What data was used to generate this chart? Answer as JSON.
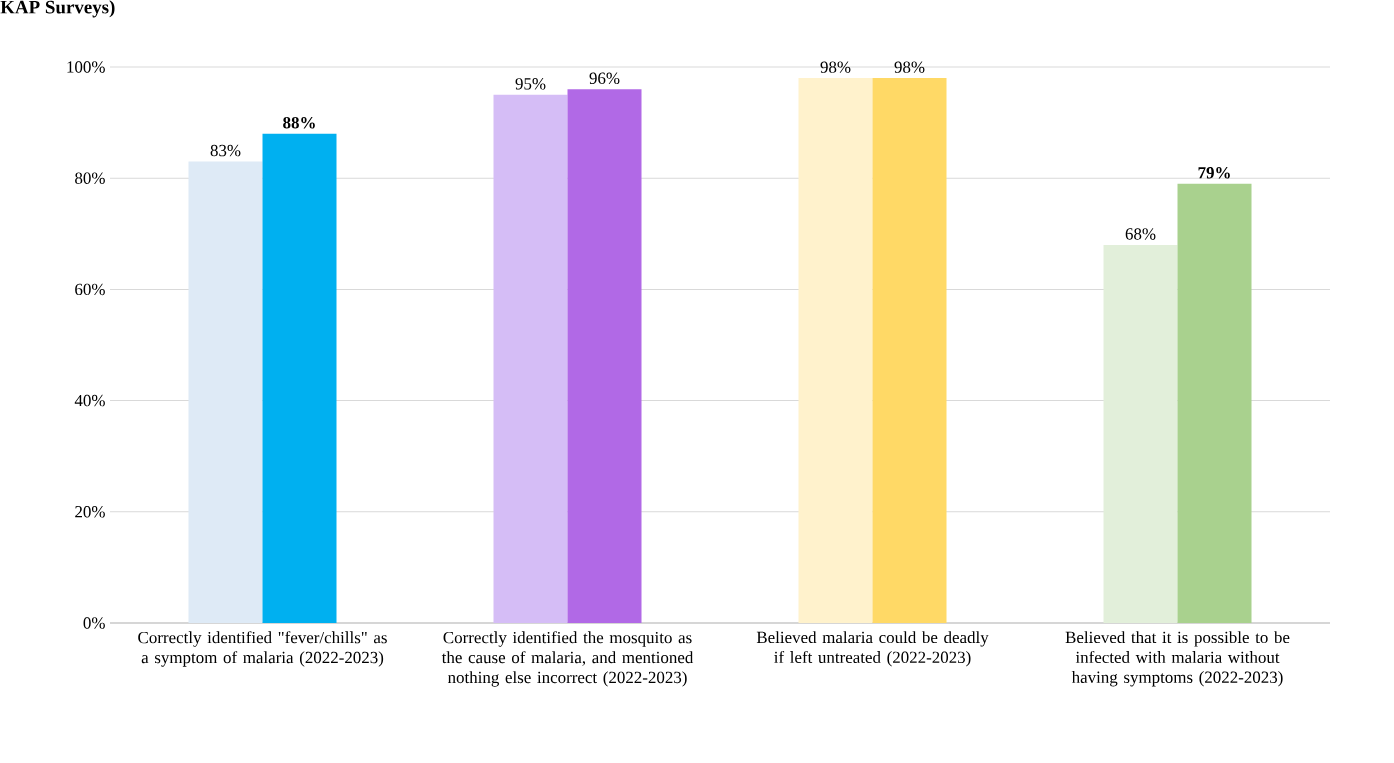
{
  "chart_data": {
    "type": "bar",
    "title": "KAP Surveys)",
    "categories": [
      "Correctly identified \"fever/chills\" as a symptom of malaria (2022-2023)",
      "Correctly identified the mosquito as the cause of malaria, and mentioned nothing else incorrect (2022-2023)",
      "Believed malaria could be deadly if left untreated (2022-2023)",
      "Believed that it is possible to be infected with malaria without having symptoms (2022-2023)"
    ],
    "series": [
      {
        "colors": [
          "#deeaf6",
          "#d5bdf6",
          "#fff2cc",
          "#e2efda"
        ],
        "values": [
          83,
          95,
          98,
          68
        ],
        "value_labels": [
          "83%",
          "95%",
          "98%",
          "68%"
        ]
      },
      {
        "colors": [
          "#00b0f0",
          "#b169e6",
          "#ffd966",
          "#a9d18e"
        ],
        "values": [
          88,
          96,
          98,
          79
        ],
        "value_labels": [
          "**88%**",
          "96%",
          "98%",
          "**79%**"
        ]
      }
    ],
    "ylim": [
      0,
      100
    ],
    "yticks": [
      {
        "value": 0,
        "label": "0%"
      },
      {
        "value": 20,
        "label": "20%"
      },
      {
        "value": 40,
        "label": "40%"
      },
      {
        "value": 60,
        "label": "60%"
      },
      {
        "value": 80,
        "label": "80%"
      },
      {
        "value": 100,
        "label": "100%"
      }
    ],
    "grid": "y"
  }
}
